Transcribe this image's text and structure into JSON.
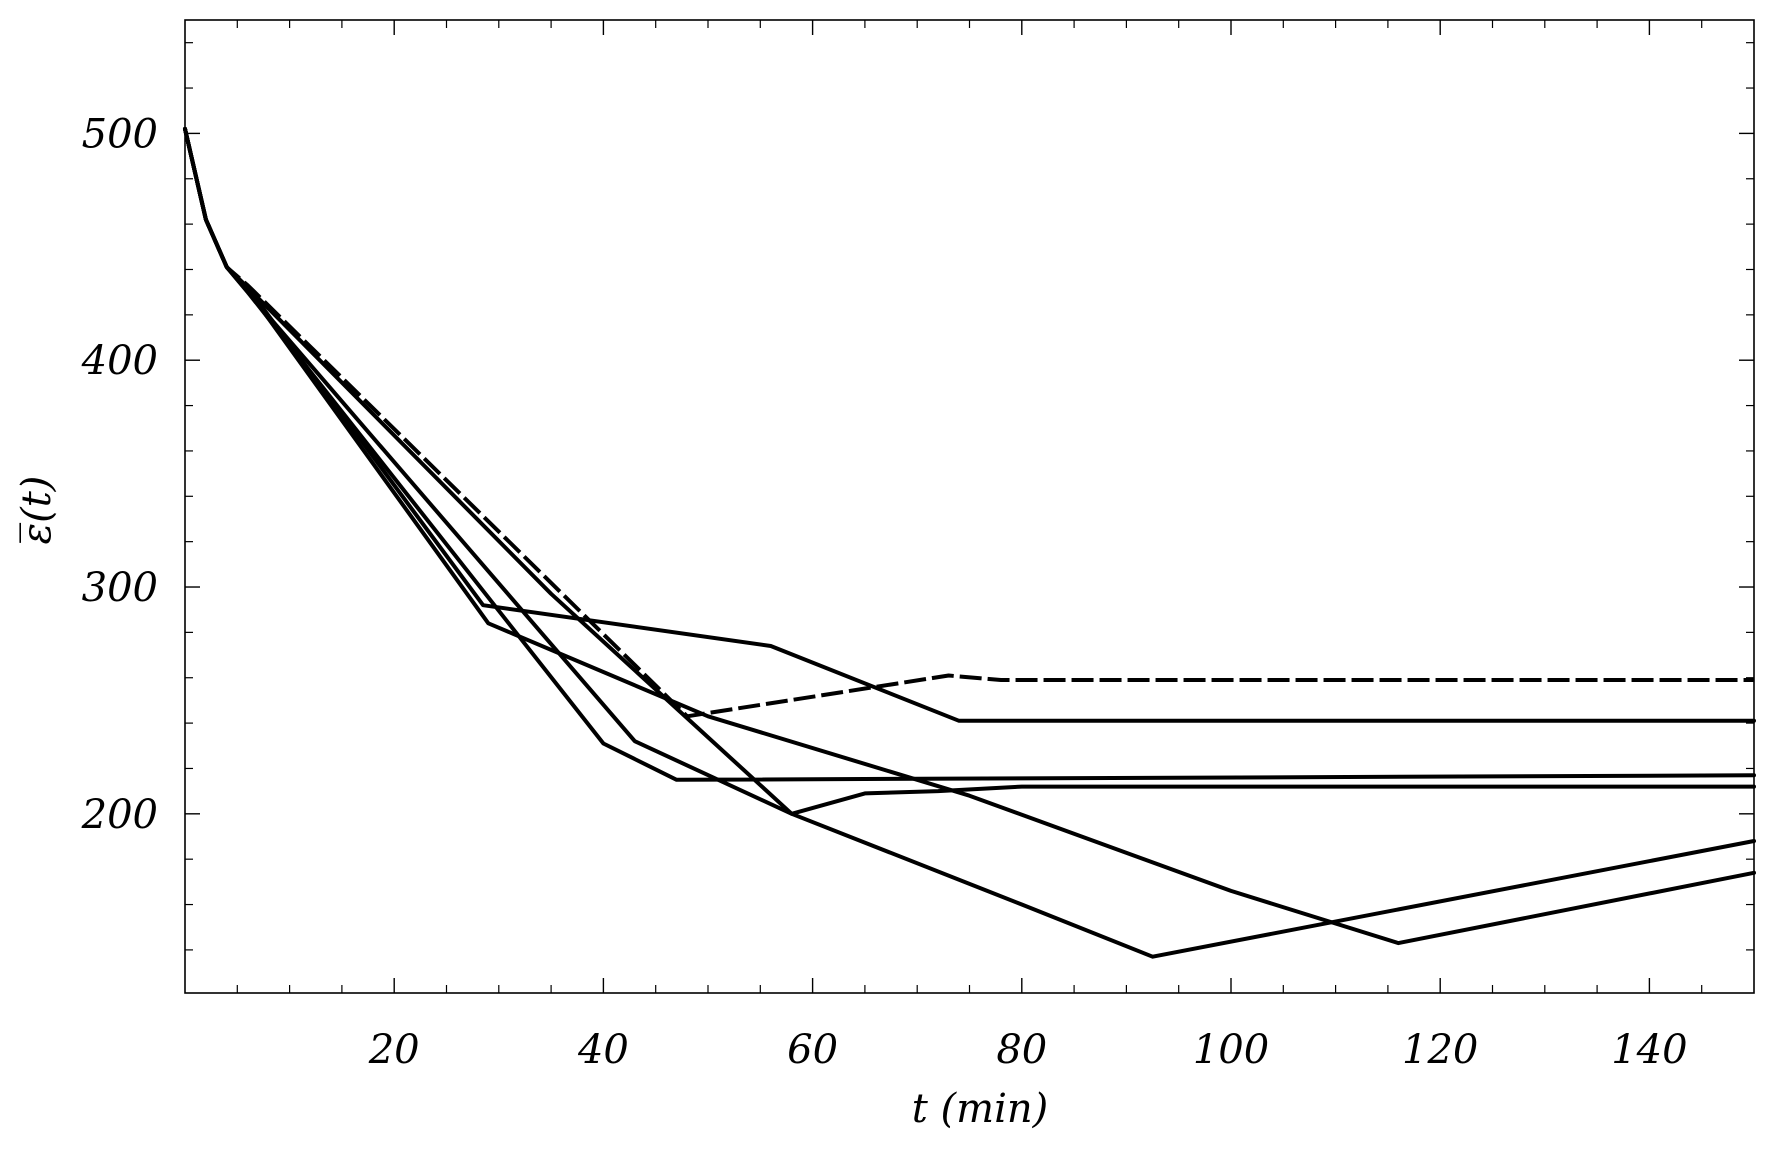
{
  "chart_data": {
    "type": "line",
    "title": "",
    "xlabel": "t (min)",
    "ylabel": "ε̅(t)",
    "xlim": [
      0,
      150
    ],
    "ylim": [
      121,
      550
    ],
    "xticks": [
      20,
      40,
      60,
      80,
      100,
      120,
      140
    ],
    "yticks": [
      200,
      300,
      400,
      500
    ],
    "xtick_labels": [
      "20",
      "40",
      "60",
      "80",
      "100",
      "120",
      "140"
    ],
    "ytick_labels": [
      "200",
      "300",
      "400",
      "500"
    ],
    "minor_x_step": 5,
    "minor_y_step": 20,
    "grid": false,
    "series": [
      {
        "style": "solid",
        "x": [
          0,
          2,
          4,
          6,
          28.5,
          56,
          74,
          150
        ],
        "y": [
          502,
          462,
          441,
          432,
          292,
          274,
          241,
          241
        ]
      },
      {
        "style": "solid",
        "x": [
          0,
          2,
          4,
          6,
          29,
          50,
          75,
          100,
          116,
          150
        ],
        "y": [
          502,
          462,
          441,
          431,
          284,
          243,
          208,
          166,
          143,
          174
        ]
      },
      {
        "style": "solid",
        "x": [
          0,
          2,
          4,
          6,
          40,
          47,
          150
        ],
        "y": [
          502,
          462,
          441,
          430,
          231,
          215,
          217
        ]
      },
      {
        "style": "solid",
        "x": [
          0,
          2,
          4,
          6,
          43,
          58,
          65,
          72,
          80,
          150
        ],
        "y": [
          502,
          462,
          441,
          430,
          232,
          200,
          209,
          210,
          212,
          212
        ]
      },
      {
        "style": "solid",
        "x": [
          0,
          2,
          4,
          6,
          35,
          58,
          80,
          92.5,
          150
        ],
        "y": [
          502,
          462,
          441,
          432,
          297,
          200,
          160,
          137,
          188
        ]
      },
      {
        "style": "dashed",
        "x": [
          0,
          2,
          4,
          6,
          48,
          73,
          78,
          150
        ],
        "y": [
          502,
          462,
          441,
          433,
          243,
          261,
          259,
          259
        ]
      }
    ]
  }
}
